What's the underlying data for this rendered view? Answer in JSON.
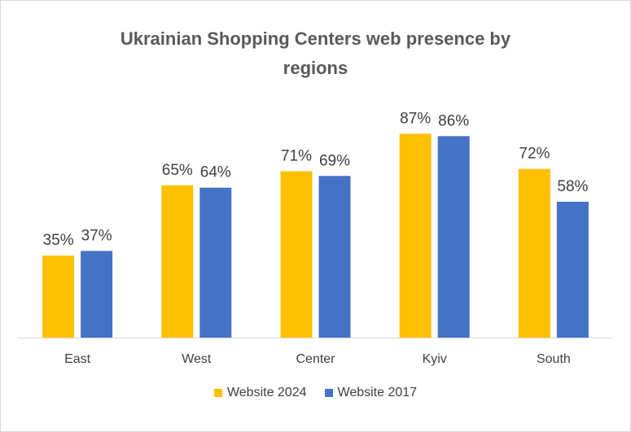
{
  "chart_data": {
    "type": "bar",
    "title_lines": [
      "Ukrainian  Shopping Centers web presence by",
      "regions"
    ],
    "categories": [
      "East",
      "West",
      "Center",
      "Kyiv",
      "South"
    ],
    "series": [
      {
        "name": "Website 2024",
        "values": [
          35,
          65,
          71,
          87,
          72
        ],
        "labels": [
          "35%",
          "65%",
          "71%",
          "87%",
          "72%"
        ],
        "color": "#FFC000"
      },
      {
        "name": "Website 2017",
        "values": [
          37,
          64,
          69,
          86,
          58
        ],
        "labels": [
          "37%",
          "64%",
          "69%",
          "86%",
          "58%"
        ],
        "color": "#4472C4"
      }
    ],
    "ylim": [
      0,
      100
    ],
    "grid": false,
    "legend_position": "bottom"
  }
}
